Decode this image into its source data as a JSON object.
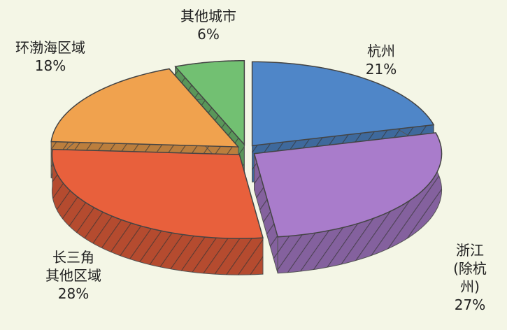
{
  "chart_data": {
    "type": "pie",
    "categories": [
      "杭州",
      "浙江\n(除杭州)",
      "长三角\n其他区域",
      "环渤海区域",
      "其他城市"
    ],
    "values": [
      21,
      27,
      28,
      18,
      6
    ],
    "value_labels": [
      "21%",
      "27%",
      "28%",
      "18%",
      "6%"
    ],
    "colors": [
      "#4f86c8",
      "#a97ccb",
      "#e8603c",
      "#f0a24e",
      "#72c072"
    ]
  }
}
